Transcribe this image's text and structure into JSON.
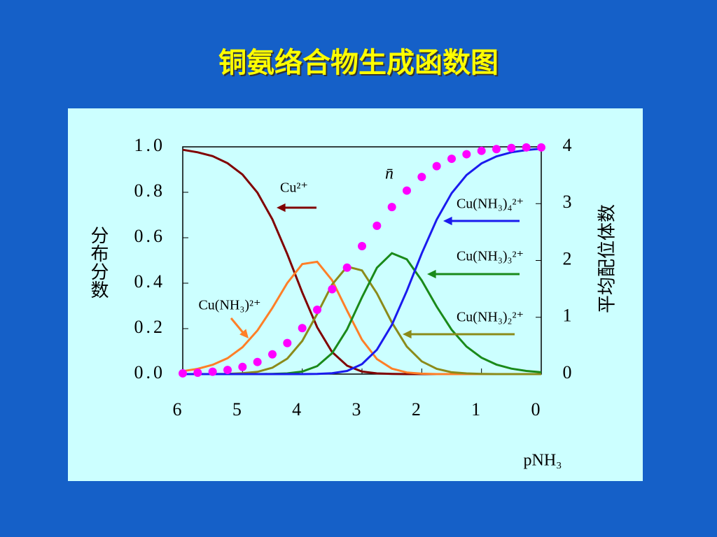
{
  "chart_data": {
    "type": "line",
    "title": "铜氨络合物生成函数图",
    "x_label": "pNH₃",
    "y_label": "分布分数",
    "y2_label": "平均配位体数",
    "x": [
      6,
      5.75,
      5.5,
      5.25,
      5,
      4.75,
      4.5,
      4.25,
      4,
      3.75,
      3.5,
      3.25,
      3,
      2.75,
      2.5,
      2.25,
      2,
      1.75,
      1.5,
      1.25,
      1,
      0.75,
      0.5,
      0.25,
      0
    ],
    "xlim": [
      6,
      0
    ],
    "xticks": [
      6,
      5,
      4,
      3,
      2,
      1,
      0
    ],
    "ylim": [
      0,
      1
    ],
    "yticks": [
      {
        "value": 0,
        "label": "0.0"
      },
      0.2,
      0.4,
      0.6,
      0.8,
      {
        "value": 1,
        "label": "1.0"
      }
    ],
    "y2lim": [
      0,
      4
    ],
    "y2ticks": [
      0,
      1,
      2,
      3,
      4
    ],
    "series": [
      {
        "name": "Cu²⁺",
        "color": "#800000",
        "values": [
          0.987,
          0.976,
          0.959,
          0.928,
          0.878,
          0.798,
          0.681,
          0.528,
          0.359,
          0.206,
          0.097,
          0.037,
          0.011,
          0.003,
          0.001,
          0,
          0,
          0,
          0,
          0,
          0,
          0,
          0,
          0,
          0
        ]
      },
      {
        "name": "Cu(NH₃)²⁺",
        "color": "#ff7f27",
        "values": [
          0.013,
          0.023,
          0.041,
          0.07,
          0.118,
          0.192,
          0.291,
          0.401,
          0.484,
          0.494,
          0.413,
          0.279,
          0.151,
          0.066,
          0.024,
          0.007,
          0.002,
          0,
          0,
          0,
          0,
          0,
          0,
          0,
          0
        ]
      },
      {
        "name": "Cu(NH₃)₂²⁺",
        "color": "#8b8b1a",
        "values": [
          0,
          0,
          0,
          0.001,
          0.004,
          0.01,
          0.028,
          0.068,
          0.146,
          0.265,
          0.394,
          0.473,
          0.456,
          0.355,
          0.227,
          0.121,
          0.056,
          0.023,
          0.008,
          0.003,
          0.001,
          0,
          0,
          0,
          0
        ]
      },
      {
        "name": "Cu(NH₃)₃²⁺",
        "color": "#1a8a1a",
        "values": [
          0,
          0,
          0,
          0,
          0,
          0,
          0.001,
          0.003,
          0.011,
          0.035,
          0.092,
          0.197,
          0.338,
          0.468,
          0.532,
          0.505,
          0.412,
          0.297,
          0.195,
          0.121,
          0.072,
          0.042,
          0.024,
          0.014,
          0.008
        ]
      },
      {
        "name": "Cu(NH₃)₄²⁺",
        "color": "#1a1aee",
        "values": [
          0,
          0,
          0,
          0,
          0,
          0,
          0,
          0,
          0,
          0.001,
          0.004,
          0.014,
          0.044,
          0.107,
          0.217,
          0.366,
          0.531,
          0.68,
          0.796,
          0.876,
          0.927,
          0.958,
          0.976,
          0.986,
          0.992
        ]
      },
      {
        "name": "n̄",
        "color": "#ff00ff",
        "axis": "y2",
        "marker": "circle",
        "values": [
          0.013,
          0.024,
          0.042,
          0.073,
          0.126,
          0.213,
          0.348,
          0.546,
          0.809,
          1.132,
          1.494,
          1.874,
          2.252,
          2.611,
          2.94,
          3.23,
          3.47,
          3.66,
          3.79,
          3.87,
          3.93,
          3.96,
          3.98,
          3.99,
          3.99
        ]
      }
    ]
  }
}
